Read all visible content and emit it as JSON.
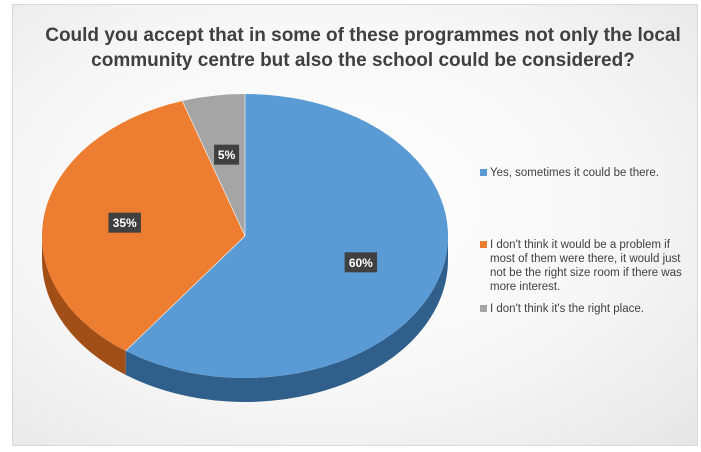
{
  "chart_data": {
    "type": "pie",
    "title": "Could you accept that in some of these programmes not only the local community centre but also the school could be considered?",
    "slices": [
      {
        "label": "Yes, sometimes it could be there.",
        "value": 60,
        "data_label": "60%",
        "color": "#5b9bd5",
        "side_color": "#2f5f8a"
      },
      {
        "label": "I don't think it would be a problem if most of them were there, it would just not be the right size room if there was more interest.",
        "value": 35,
        "data_label": "35%",
        "color": "#ed7d31",
        "side_color": "#a24f17"
      },
      {
        "label": "I don't think it's the right place.",
        "value": 5,
        "data_label": "5%",
        "color": "#a5a5a5",
        "side_color": "#6f6f6f"
      }
    ],
    "legend_position": "right",
    "style": "3d-pie"
  }
}
